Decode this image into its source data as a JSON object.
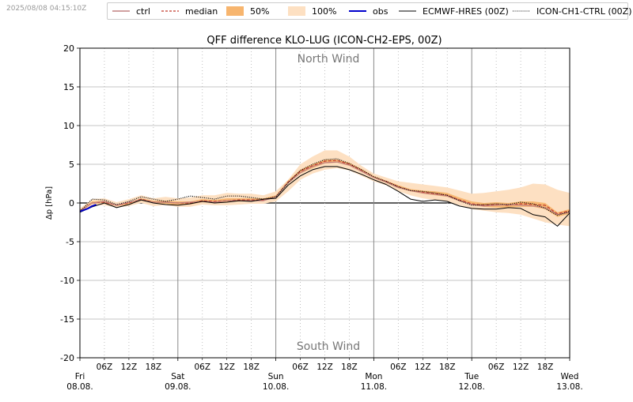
{
  "header": {
    "timestamp": "2025/08/08 04:15:10Z"
  },
  "legend": [
    {
      "id": "ctrl",
      "label": "ctrl",
      "style": "line",
      "color": "#c08080"
    },
    {
      "id": "median",
      "label": "median",
      "style": "dashed",
      "color": "#c0392b"
    },
    {
      "id": "p50",
      "label": "50%",
      "style": "fill",
      "color": "#f7b56e"
    },
    {
      "id": "p100",
      "label": "100%",
      "style": "fill",
      "color": "#fde0c2"
    },
    {
      "id": "obs",
      "label": "obs",
      "style": "line",
      "color": "#0000cc"
    },
    {
      "id": "hres",
      "label": "ECMWF-HRES (00Z)",
      "style": "line",
      "color": "#000000"
    },
    {
      "id": "ch1",
      "label": "ICON-CH1-CTRL (00Z)",
      "style": "dotted",
      "color": "#000000"
    }
  ],
  "chart_data": {
    "type": "line",
    "title": "QFF difference KLO-LUG (ICON-CH2-EPS, 00Z)",
    "ylabel": "Δp [hPa]",
    "xlabel": "",
    "ylim": [
      -20,
      20
    ],
    "xlim_hours": [
      0,
      120
    ],
    "yticks": [
      -20,
      -15,
      -10,
      -5,
      0,
      5,
      10,
      15,
      20
    ],
    "annotations": {
      "top": "North Wind",
      "bottom": "South Wind"
    },
    "minor_ticks": [
      {
        "h": 6,
        "label": "06Z"
      },
      {
        "h": 12,
        "label": "12Z"
      },
      {
        "h": 18,
        "label": "18Z"
      },
      {
        "h": 30,
        "label": "06Z"
      },
      {
        "h": 36,
        "label": "12Z"
      },
      {
        "h": 42,
        "label": "18Z"
      },
      {
        "h": 54,
        "label": "06Z"
      },
      {
        "h": 60,
        "label": "12Z"
      },
      {
        "h": 66,
        "label": "18Z"
      },
      {
        "h": 78,
        "label": "06Z"
      },
      {
        "h": 84,
        "label": "12Z"
      },
      {
        "h": 90,
        "label": "18Z"
      },
      {
        "h": 102,
        "label": "06Z"
      },
      {
        "h": 108,
        "label": "12Z"
      },
      {
        "h": 114,
        "label": "18Z"
      }
    ],
    "day_ticks": [
      {
        "h": 0,
        "day": "Fri",
        "date": "08.08."
      },
      {
        "h": 24,
        "day": "Sat",
        "date": "09.08."
      },
      {
        "h": 48,
        "day": "Sun",
        "date": "10.08."
      },
      {
        "h": 72,
        "day": "Mon",
        "date": "11.08."
      },
      {
        "h": 96,
        "day": "Tue",
        "date": "12.08."
      },
      {
        "h": 120,
        "day": "Wed",
        "date": "13.08."
      }
    ],
    "x_hours": [
      0,
      3,
      6,
      9,
      12,
      15,
      18,
      21,
      24,
      27,
      30,
      33,
      36,
      39,
      42,
      45,
      48,
      51,
      54,
      57,
      60,
      63,
      66,
      69,
      72,
      75,
      78,
      81,
      84,
      87,
      90,
      93,
      96,
      99,
      102,
      105,
      108,
      111,
      114,
      117,
      120
    ],
    "series": [
      {
        "id": "p100",
        "kind": "band",
        "lower": [
          -1.3,
          -0.3,
          -0.3,
          -0.6,
          -0.4,
          0.0,
          -0.4,
          -0.3,
          -0.5,
          -0.5,
          -0.2,
          -0.3,
          -0.3,
          -0.2,
          -0.1,
          -0.1,
          0.2,
          1.5,
          3.0,
          3.8,
          4.3,
          4.5,
          4.2,
          3.5,
          2.8,
          2.3,
          1.5,
          1.0,
          0.6,
          0.4,
          0.2,
          -0.3,
          -0.8,
          -1.0,
          -1.2,
          -1.3,
          -1.5,
          -2.0,
          -2.5,
          -2.8,
          -3.0
        ],
        "upper": [
          -0.7,
          0.5,
          0.6,
          0.1,
          0.5,
          1.0,
          0.6,
          0.8,
          0.6,
          0.7,
          1.0,
          1.0,
          1.3,
          1.2,
          1.2,
          1.0,
          1.5,
          3.0,
          5.0,
          6.0,
          6.8,
          6.8,
          6.0,
          4.8,
          3.8,
          3.3,
          2.8,
          2.6,
          2.4,
          2.2,
          2.0,
          1.6,
          1.2,
          1.3,
          1.5,
          1.7,
          2.0,
          2.5,
          2.4,
          1.7,
          1.3
        ]
      },
      {
        "id": "p50",
        "kind": "band",
        "lower": [
          -1.2,
          -0.1,
          0.0,
          -0.4,
          -0.2,
          0.3,
          0.0,
          -0.1,
          -0.3,
          -0.2,
          0.1,
          0.0,
          0.1,
          0.2,
          0.3,
          0.3,
          0.7,
          2.5,
          3.8,
          4.5,
          5.1,
          5.2,
          4.8,
          4.0,
          3.2,
          2.6,
          1.9,
          1.5,
          1.2,
          1.0,
          0.8,
          0.2,
          -0.3,
          -0.5,
          -0.6,
          -0.6,
          -0.5,
          -0.5,
          -0.8,
          -1.8,
          -1.4
        ],
        "upper": [
          -0.9,
          0.2,
          0.3,
          -0.2,
          0.1,
          0.6,
          0.3,
          0.3,
          0.2,
          0.2,
          0.5,
          0.4,
          0.6,
          0.6,
          0.6,
          0.6,
          1.0,
          2.9,
          4.3,
          5.0,
          5.6,
          5.6,
          5.2,
          4.4,
          3.5,
          2.9,
          2.3,
          1.8,
          1.6,
          1.5,
          1.3,
          0.7,
          0.2,
          0.0,
          0.1,
          0.0,
          0.2,
          0.2,
          0.0,
          -1.2,
          -0.8
        ]
      },
      {
        "id": "median",
        "kind": "line",
        "style": "dashed",
        "color": "#c0392b",
        "values": [
          -1.0,
          0.0,
          0.1,
          -0.3,
          0.0,
          0.5,
          0.1,
          0.1,
          0.0,
          0.0,
          0.3,
          0.2,
          0.3,
          0.4,
          0.4,
          0.4,
          0.8,
          2.7,
          4.1,
          4.8,
          5.4,
          5.5,
          5.0,
          4.2,
          3.3,
          2.8,
          2.1,
          1.6,
          1.4,
          1.2,
          1.0,
          0.4,
          -0.1,
          -0.3,
          -0.2,
          -0.3,
          -0.1,
          -0.2,
          -0.3,
          -1.4,
          -1.0
        ]
      },
      {
        "id": "ctrl",
        "kind": "line",
        "style": "solid",
        "color": "#c08080",
        "values": [
          -1.0,
          0.0,
          0.2,
          -0.3,
          0.1,
          0.4,
          0.1,
          0.1,
          0.0,
          0.1,
          0.2,
          0.1,
          0.3,
          0.3,
          0.3,
          0.3,
          0.8,
          2.6,
          3.9,
          4.7,
          5.2,
          5.3,
          4.9,
          4.1,
          3.3,
          2.7,
          2.0,
          1.6,
          1.3,
          1.1,
          0.9,
          0.3,
          -0.2,
          -0.4,
          -0.3,
          -0.2,
          -0.3,
          -0.4,
          -0.6,
          -1.5,
          -1.2
        ]
      },
      {
        "id": "hres",
        "kind": "line",
        "style": "solid",
        "color": "#000000",
        "values": [
          -1.2,
          -0.5,
          0.0,
          -0.6,
          -0.2,
          0.4,
          0.0,
          -0.2,
          -0.3,
          -0.1,
          0.2,
          0.0,
          0.1,
          0.3,
          0.2,
          0.5,
          0.6,
          2.3,
          3.5,
          4.3,
          4.7,
          4.7,
          4.3,
          3.7,
          3.0,
          2.4,
          1.5,
          0.5,
          0.2,
          0.4,
          0.2,
          -0.4,
          -0.7,
          -0.8,
          -0.8,
          -0.6,
          -0.7,
          -1.5,
          -1.8,
          -3.0,
          -1.3
        ]
      },
      {
        "id": "ch1",
        "kind": "line",
        "style": "dotted",
        "color": "#000000",
        "values": [
          -1.1,
          0.5,
          0.4,
          -0.2,
          0.2,
          0.8,
          0.5,
          0.2,
          0.5,
          0.9,
          0.7,
          0.5,
          0.9,
          0.9,
          0.7,
          0.5,
          0.8,
          2.6,
          4.2,
          5.0,
          5.6,
          5.7,
          5.1,
          4.3,
          3.4,
          2.8,
          2.1,
          1.6,
          1.5,
          1.3,
          1.0,
          0.3,
          -0.3,
          -0.2,
          -0.1,
          -0.2,
          0.1,
          -0.1,
          -0.7,
          -1.6,
          -1.1
        ]
      },
      {
        "id": "obs",
        "kind": "line",
        "style": "solid",
        "color": "#0000cc",
        "x_hours": [
          0,
          1,
          2,
          3,
          4
        ],
        "values": [
          -1.1,
          -0.9,
          -0.7,
          -0.4,
          -0.2
        ]
      }
    ]
  }
}
